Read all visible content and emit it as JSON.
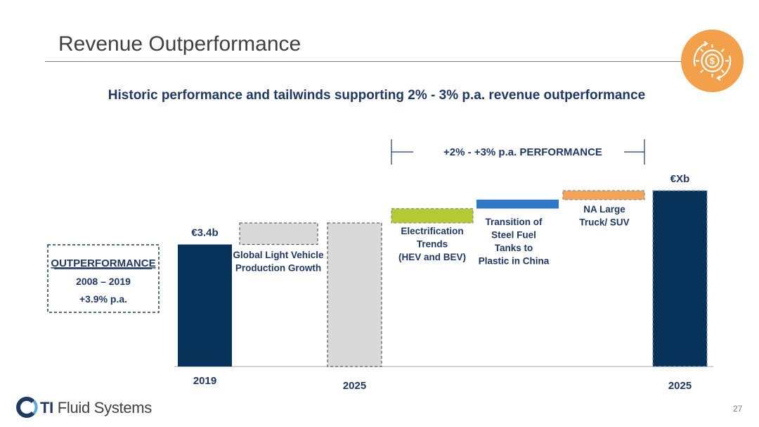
{
  "slide": {
    "title": "Revenue Outperformance",
    "subtitle": "Historic performance and tailwinds supporting 2% - 3% p.a. revenue outperformance",
    "page_number": "27",
    "footer_brand_bold": "TI",
    "footer_brand_rest": "Fluid Systems",
    "badge_icon": "gear-cycle-dollar-icon"
  },
  "outperformance_box": {
    "heading": "OUTPERFORMANCE",
    "period": "2008 – 2019",
    "rate": "+3.9% p.a."
  },
  "performance_bracket": {
    "label": "+2% - +3%  p.a. PERFORMANCE"
  },
  "colors": {
    "navy": "#06325a",
    "grey": "#d9d9d9",
    "green": "#b5c934",
    "blue": "#2f78c8",
    "orange": "#f4a35b",
    "text": "#1f3864"
  },
  "chart_data": {
    "type": "bar",
    "subtype": "waterfall",
    "value_labels_shown": [
      "€3.4b",
      "€Xb"
    ],
    "bars": [
      {
        "category": "2019",
        "label": "",
        "value_label": "€3.4b",
        "kind": "total",
        "style": "solid",
        "color": "#06325a",
        "base": 0,
        "top": 3.4
      },
      {
        "category": "",
        "label": "Global Light Vehicle Production Growth",
        "value_label": "",
        "kind": "delta",
        "style": "dashed",
        "color": "#d9d9d9",
        "base": 3.4,
        "top": 4.0
      },
      {
        "category": "2025",
        "label": "",
        "value_label": "",
        "kind": "total",
        "style": "dashed",
        "color": "#d9d9d9",
        "base": 0,
        "top": 4.0
      },
      {
        "category": "",
        "label": "Electrification Trends (HEV and BEV)",
        "value_label": "",
        "kind": "delta",
        "style": "dashed",
        "color": "#b5c934",
        "base": 4.0,
        "top": 4.4
      },
      {
        "category": "",
        "label": "Transition of Steel Fuel Tanks to Plastic in China",
        "value_label": "",
        "kind": "delta",
        "style": "solid",
        "color": "#2f78c8",
        "base": 4.4,
        "top": 4.65
      },
      {
        "category": "",
        "label": "NA Large Truck/ SUV",
        "value_label": "",
        "kind": "delta",
        "style": "dashed",
        "color": "#f4a35b",
        "base": 4.65,
        "top": 4.9
      },
      {
        "category": "2025",
        "label": "",
        "value_label": "€Xb",
        "kind": "total",
        "style": "dashed",
        "color": "#06325a",
        "base": 0,
        "top": 4.9
      }
    ],
    "label_lines": [
      [
        "Global Light Vehicle",
        "Production Growth"
      ],
      [
        "Electrification",
        "Trends",
        "(HEV and BEV)"
      ],
      [
        "Transition of",
        "Steel Fuel",
        "Tanks to",
        "Plastic in China"
      ],
      [
        "NA Large",
        "Truck/ SUV"
      ]
    ],
    "ylim": [
      0,
      5
    ],
    "grid": false,
    "legend": "none",
    "title": "",
    "xlabel": "",
    "ylabel": ""
  }
}
